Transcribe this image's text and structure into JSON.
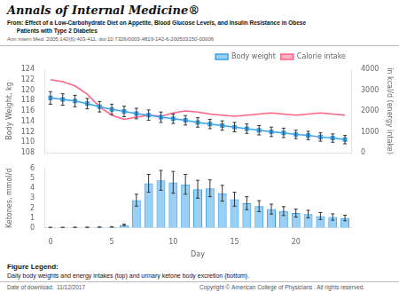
{
  "chart_data": [
    {
      "type": "line",
      "title": "Annals of Internal Medicine®",
      "subtitle": [
        "From: Effect of a Low-Carbohydrate Diet on Appetite, Blood Glucose Levels, and Insulin Resistance in Obese",
        "      Patients with Type 2 Diabetes",
        "Ann Intern Med. 2005;142(6):403-411. doi:10.7326/0003-4819-142-6-200503150-00006"
      ],
      "x": [
        0,
        1,
        2,
        3,
        4,
        5,
        6,
        7,
        8,
        9,
        10,
        11,
        12,
        13,
        14,
        15,
        16,
        17,
        18,
        19,
        20,
        21,
        22,
        23,
        24
      ],
      "xlim": [
        -0.5,
        24.5
      ],
      "ylabel": "Body Weight, kg",
      "y2label": "in kcal/d (energy intake)",
      "series": [
        {
          "name": "Body weight",
          "marker": "square",
          "values": [
            118.5,
            118.2,
            117.9,
            117.4,
            116.8,
            116.3,
            115.9,
            115.5,
            115.2,
            114.8,
            114.5,
            114.2,
            113.8,
            113.5,
            113.2,
            112.9,
            112.6,
            112.3,
            112.0,
            111.8,
            111.5,
            111.3,
            111.0,
            110.8,
            110.5
          ],
          "errors": [
            1.2,
            1.1,
            1.1,
            1.0,
            1.0,
            1.0,
            1.0,
            1.0,
            1.0,
            1.0,
            0.9,
            0.9,
            0.9,
            0.9,
            0.9,
            0.9,
            0.9,
            0.9,
            0.9,
            0.9,
            0.8,
            0.8,
            0.8,
            0.8,
            0.8
          ]
        },
        {
          "name": "Calorie intake",
          "axis": "y2",
          "values": [
            3500,
            3400,
            3200,
            2800,
            2200,
            1800,
            1600,
            1700,
            1800,
            1750,
            1900,
            2000,
            1950,
            1850,
            1800,
            1750,
            1800,
            1850,
            1900,
            1850,
            1800,
            1850,
            1900,
            1850,
            1800
          ]
        }
      ],
      "ylim": [
        108,
        124
      ],
      "yticks": [
        108,
        110,
        112,
        114,
        116,
        118,
        120,
        122,
        124
      ],
      "y2lim": [
        0,
        4000
      ],
      "y2ticks": [
        0,
        1000,
        2000,
        3000,
        4000
      ],
      "tick_labels": "y",
      "grid": false,
      "legend": "upper right"
    },
    {
      "type": "bar",
      "x": [
        0,
        1,
        2,
        3,
        4,
        5,
        6,
        7,
        8,
        9,
        10,
        11,
        12,
        13,
        14,
        15,
        16,
        17,
        18,
        19,
        20,
        21,
        22,
        23,
        24
      ],
      "values": [
        0.05,
        0.05,
        0.06,
        0.06,
        0.08,
        0.1,
        0.3,
        2.8,
        4.5,
        4.8,
        4.6,
        4.4,
        3.9,
        4.0,
        3.5,
        2.9,
        2.5,
        2.2,
        1.9,
        1.7,
        1.5,
        1.4,
        1.2,
        1.1,
        1.0
      ],
      "errors": [
        0.01,
        0.01,
        0.01,
        0.01,
        0.02,
        0.03,
        0.08,
        0.6,
        0.9,
        1.0,
        1.1,
        1.0,
        0.9,
        0.85,
        0.8,
        0.7,
        0.65,
        0.55,
        0.5,
        0.45,
        0.4,
        0.38,
        0.35,
        0.32,
        0.28
      ],
      "xlabel": "Day",
      "ylabel": "Ketones, mmol/d",
      "xlim": [
        -0.5,
        24.5
      ],
      "xticks": [
        0,
        5,
        10,
        15,
        20
      ],
      "ylim": [
        0,
        6
      ],
      "yticks": [
        0,
        1,
        2,
        3,
        4,
        5,
        6
      ],
      "grid": false,
      "annotations": [
        "Figure Legend:",
        "Daily body weights and energy intakes (top) and urinary ketone body excretion (bottom).",
        "Date of download:  11/12/2017",
        "Copyright © ",
        "American College of Physicians",
        " . All rights reserved."
      ]
    }
  ]
}
